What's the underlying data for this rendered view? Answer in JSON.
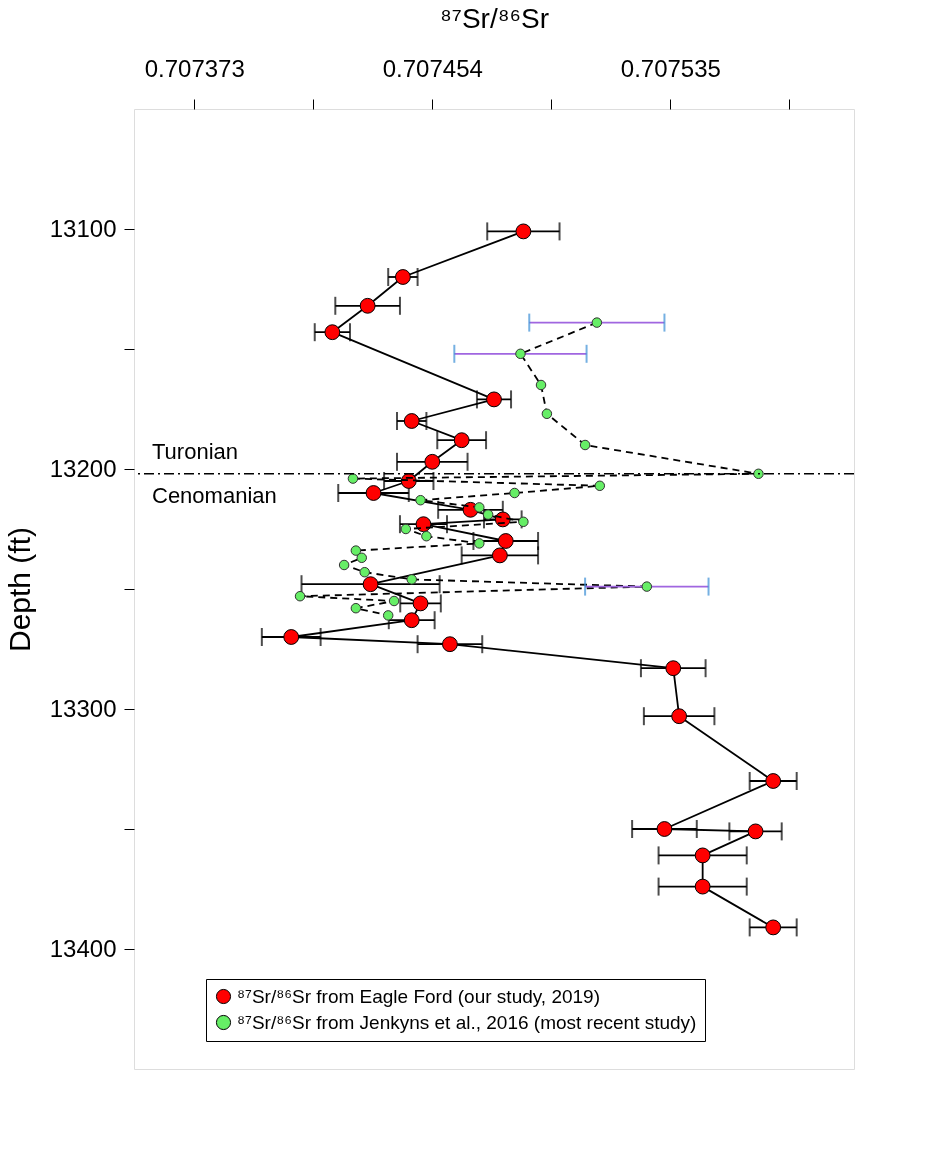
{
  "chart_data": {
    "type": "line",
    "xlabel": "⁸⁷Sr/⁸⁶Sr",
    "ylabel": "Depth (ft)",
    "xlim": [
      0.7073525,
      0.7075975
    ],
    "xticks": [
      0.707373,
      {
        "value": 0.7074135,
        "label": null
      },
      0.707454,
      {
        "value": 0.7074945,
        "label": null
      },
      0.707535,
      {
        "value": 0.7075755,
        "label": null
      }
    ],
    "ylim": [
      13450,
      13050
    ],
    "yticks": [
      13100,
      {
        "value": 13150,
        "label": null
      },
      13200,
      {
        "value": 13250,
        "label": null
      },
      13300,
      {
        "value": 13350,
        "label": null
      },
      13400
    ],
    "grid": false,
    "legend": "bottom",
    "marker": "circle",
    "series": [
      {
        "name": "⁸⁷Sr/⁸⁶Sr from Eagle Ford (our study, 2019)",
        "color": "#ff0000",
        "line_style": "solid",
        "x": [
          0.707485,
          0.707444,
          0.707432,
          0.70742,
          0.707475,
          0.707447,
          0.707464,
          0.707454,
          0.707446,
          0.707434,
          0.707467,
          0.707478,
          0.707451,
          0.707479,
          0.707477,
          0.707433,
          0.70745,
          0.707447,
          0.707406,
          0.70746,
          0.707536,
          0.707538,
          0.70757,
          0.707533,
          0.707564,
          0.707546,
          0.707546,
          0.70757
        ],
        "values": [
          13101,
          13120,
          13132,
          13143,
          13171,
          13180,
          13188,
          13197,
          13205,
          13210,
          13217,
          13221,
          13223,
          13230,
          13236,
          13248,
          13256,
          13263,
          13270,
          13273,
          13283,
          13303,
          13330,
          13350,
          13351,
          13361,
          13374,
          13391
        ],
        "xerrors": [
          1.23e-05,
          5e-06,
          1.1e-05,
          6e-06,
          5.8e-06,
          5e-06,
          8.3e-06,
          1.2e-05,
          8.4e-06,
          1.2e-05,
          1.1e-05,
          6.4e-06,
          8e-06,
          1.1e-05,
          1.3e-05,
          2.35e-05,
          6.9e-06,
          7.8e-06,
          1e-05,
          1.1e-05,
          1.1e-05,
          1.2e-05,
          8e-06,
          1.1e-05,
          8.9e-06,
          1.5e-05,
          1.5e-05,
          8e-06
        ]
      },
      {
        "name": "⁸⁷Sr/⁸⁶Sr from Jenkyns et al., 2016 (most recent study)",
        "color": "#66ee66",
        "line_style": "dashed",
        "x": [
          0.70751,
          0.707484,
          0.707491,
          0.707493,
          0.707506,
          0.707565,
          0.707427,
          0.707511,
          0.707482,
          0.70745,
          0.70747,
          0.707473,
          0.707485,
          0.707445,
          0.707452,
          0.70747,
          0.707428,
          0.70743,
          0.707424,
          0.707431,
          0.707447,
          0.707527,
          0.707409,
          0.707441,
          0.707428,
          0.707439
        ],
        "values": [
          13139,
          13152,
          13165,
          13177,
          13190,
          13202,
          13204,
          13207,
          13210,
          13213,
          13216,
          13219,
          13222,
          13225,
          13228,
          13231,
          13234,
          13237,
          13240,
          13243,
          13246,
          13249,
          13253,
          13255,
          13258,
          13261
        ],
        "xerrors": [
          2.3e-05,
          2.25e-05,
          null,
          null,
          null,
          null,
          null,
          null,
          null,
          null,
          null,
          null,
          null,
          null,
          null,
          null,
          null,
          null,
          null,
          null,
          null,
          2.1e-05,
          null,
          null,
          null,
          null
        ]
      }
    ],
    "ref_lines": [
      {
        "axis": "y",
        "value": 13202,
        "line_style": "dashdot"
      }
    ],
    "annotations": [
      "Turonian",
      "Cenomanian"
    ]
  }
}
